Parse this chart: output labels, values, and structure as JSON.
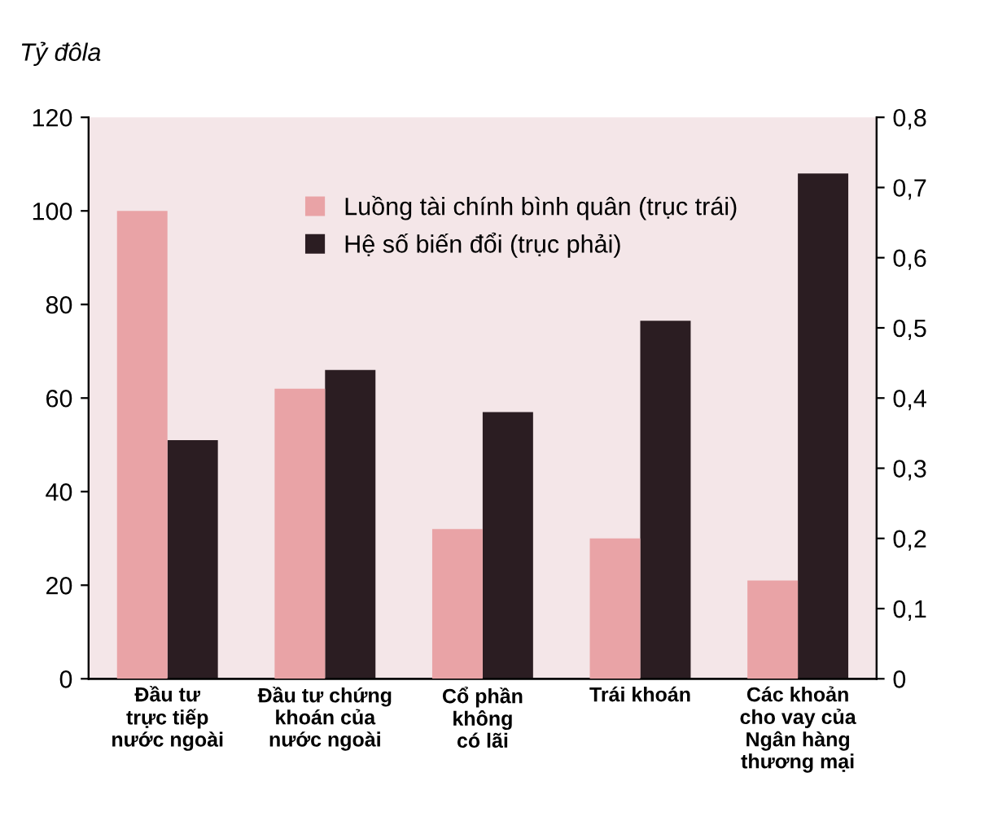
{
  "chart_data": {
    "type": "bar",
    "ylabel": "Tỷ đôla",
    "categories": [
      "Đầu tư\ntrực tiếp\nnước ngoài",
      "Đầu tư chứng\nkhoán của\nnước ngoài",
      "Cổ phần\nkhông\ncó lãi",
      "Trái khoán",
      "Các khoản\ncho vay của\nNgân hàng\nthương mại"
    ],
    "series": [
      {
        "name": "Luồng tài chính bình quân (trục trái)",
        "color": "#e9a3a6",
        "values": [
          100,
          62,
          32,
          30,
          21
        ]
      },
      {
        "name": "Hệ số biến đổi (trục phải)",
        "color": "#2b1d22",
        "values": [
          0.34,
          0.44,
          0.38,
          0.51,
          0.72
        ],
        "axis": "y2"
      }
    ],
    "ylim": [
      0,
      120
    ],
    "yticks": [
      0,
      20,
      40,
      60,
      80,
      100,
      120
    ],
    "y2lim": [
      0,
      0.8
    ],
    "y2ticks": [
      {
        "value": 0,
        "label": "0"
      },
      {
        "value": 0.1,
        "label": "0,1"
      },
      {
        "value": 0.2,
        "label": "0,2"
      },
      {
        "value": 0.3,
        "label": "0,3"
      },
      {
        "value": 0.4,
        "label": "0,4"
      },
      {
        "value": 0.5,
        "label": "0,5"
      },
      {
        "value": 0.6,
        "label": "0,6"
      },
      {
        "value": 0.7,
        "label": "0,7"
      },
      {
        "value": 0.8,
        "label": "0,8"
      }
    ],
    "grid": false,
    "legend": "top"
  }
}
